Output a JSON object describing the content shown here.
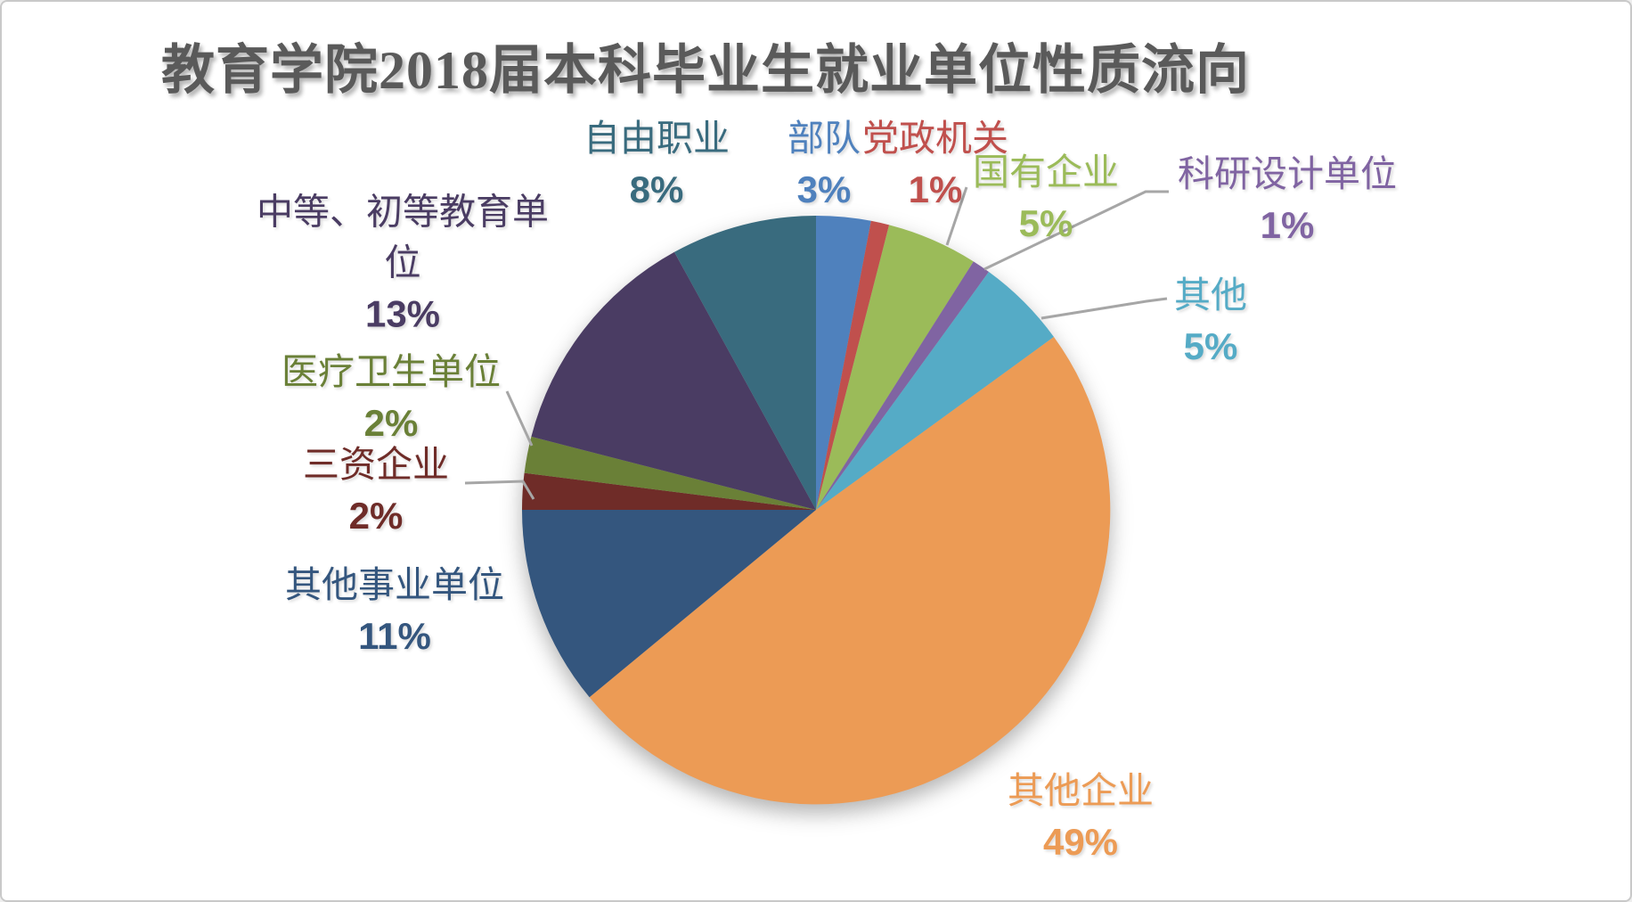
{
  "frame": {
    "background": "#FFFFFF",
    "border_color": "#C9C9C9"
  },
  "chart_data": {
    "type": "pie",
    "title": "教育学院2018届本科毕业生就业单位性质流向",
    "title_color": "#5A5A5A",
    "legend": "none",
    "start_angle_deg": 0,
    "direction": "clockwise",
    "leader_line_color": "#A6A6A6",
    "slices": [
      {
        "label": "部队",
        "value": 3,
        "pct_label": "3%",
        "color": "#4F81BD"
      },
      {
        "label": "党政机关",
        "value": 1,
        "pct_label": "1%",
        "color": "#C0504D"
      },
      {
        "label": "国有企业",
        "value": 5,
        "pct_label": "5%",
        "color": "#9BBB59"
      },
      {
        "label": "科研设计单位",
        "value": 1,
        "pct_label": "1%",
        "color": "#8064A2"
      },
      {
        "label": "其他",
        "value": 5,
        "pct_label": "5%",
        "color": "#55ABC6"
      },
      {
        "label": "其他企业",
        "value": 49,
        "pct_label": "49%",
        "color": "#EC9B55"
      },
      {
        "label": "其他事业单位",
        "value": 11,
        "pct_label": "11%",
        "color": "#34567E"
      },
      {
        "label": "三资企业",
        "value": 2,
        "pct_label": "2%",
        "color": "#6F2C28"
      },
      {
        "label": "医疗卫生单位",
        "value": 2,
        "pct_label": "2%",
        "color": "#6A8037"
      },
      {
        "label": "中等、初等教育单位",
        "value": 13,
        "pct_label": "13%",
        "color": "#4A3C63"
      },
      {
        "label": "自由职业",
        "value": 8,
        "pct_label": "8%",
        "color": "#396B7E"
      }
    ]
  }
}
